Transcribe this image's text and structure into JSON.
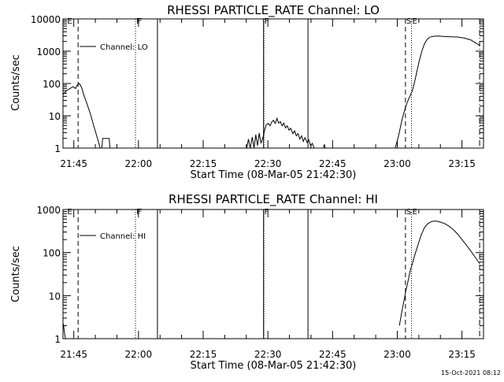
{
  "timestamp": "15-Oct-2021 08:12",
  "chart_data": [
    {
      "type": "line",
      "title": "RHESSI PARTICLE_RATE Channel: LO",
      "xlabel": "Start Time (08-Mar-05 21:42:30)",
      "ylabel": "Counts/sec",
      "scale_y": "log",
      "grid": false,
      "legend_position": "top-left",
      "xlim_minutes": [
        0,
        97.5
      ],
      "ylim": [
        1,
        10000
      ],
      "x_ticks": [
        {
          "label": "21:45",
          "min": 2.5
        },
        {
          "label": "22:00",
          "min": 17.5
        },
        {
          "label": "22:15",
          "min": 32.5
        },
        {
          "label": "22:30",
          "min": 47.5
        },
        {
          "label": "22:45",
          "min": 62.5
        },
        {
          "label": "23:00",
          "min": 77.5
        },
        {
          "label": "23:15",
          "min": 92.5
        }
      ],
      "y_ticks": [
        {
          "label": "1",
          "value": 1
        },
        {
          "label": "10",
          "value": 10
        },
        {
          "label": "100",
          "value": 100
        },
        {
          "label": "1000",
          "value": 1000
        },
        {
          "label": "10000",
          "value": 10000
        }
      ],
      "markers": [
        {
          "label": "E",
          "min": 0.8,
          "style": "none",
          "label_only": true
        },
        {
          "label": "",
          "min": 3.5,
          "style": "dashed"
        },
        {
          "label": "F",
          "min": 16.8,
          "style": "dotted"
        },
        {
          "label": "F",
          "min": 17.1,
          "style": "solid",
          "label_only": true
        },
        {
          "label": "",
          "min": 21.9,
          "style": "solid"
        },
        {
          "label": "F",
          "min": 46.5,
          "style": "solid"
        },
        {
          "label": "",
          "min": 46.6,
          "style": "dotted"
        },
        {
          "label": "",
          "min": 56.8,
          "style": "solid"
        },
        {
          "label": "S",
          "min": 79.4,
          "style": "dashed"
        },
        {
          "label": "E",
          "min": 80.8,
          "style": "dotted"
        },
        {
          "label": "",
          "min": 96.6,
          "style": "dashdot"
        }
      ],
      "series": [
        {
          "name": "Channel: LO",
          "segments": [
            [
              [
                0,
                45
              ],
              [
                0.8,
                60
              ],
              [
                1.6,
                70
              ],
              [
                2.4,
                80
              ],
              [
                2.9,
                70
              ],
              [
                3.3,
                90
              ],
              [
                3.8,
                100
              ],
              [
                4.3,
                75
              ],
              [
                4.8,
                45
              ],
              [
                5.5,
                25
              ],
              [
                6.3,
                12
              ],
              [
                7.1,
                5
              ],
              [
                7.6,
                3
              ],
              [
                8.2,
                1.6
              ],
              [
                8.6,
                1
              ]
            ],
            [
              [
                9.0,
                1
              ],
              [
                9.2,
                2
              ],
              [
                10.7,
                2
              ],
              [
                10.9,
                1
              ]
            ],
            [
              [
                42.6,
                1
              ],
              [
                43.0,
                1.9
              ],
              [
                43.4,
                1
              ],
              [
                43.9,
                2.2
              ],
              [
                44.3,
                1
              ],
              [
                44.7,
                2.6
              ],
              [
                45.1,
                1.2
              ],
              [
                45.5,
                2.9
              ],
              [
                45.9,
                1.4
              ],
              [
                46.4,
                2.2
              ],
              [
                46.7,
                3.4
              ],
              [
                47.1,
                5.2
              ],
              [
                47.6,
                5.8
              ],
              [
                48.0,
                4.9
              ],
              [
                48.4,
                6.4
              ],
              [
                48.8,
                7.2
              ],
              [
                49.2,
                5.8
              ],
              [
                49.6,
                8.3
              ],
              [
                50.0,
                5.9
              ],
              [
                50.4,
                6.6
              ],
              [
                50.8,
                4.9
              ],
              [
                51.2,
                5.9
              ],
              [
                51.6,
                4.2
              ],
              [
                52.0,
                4.9
              ],
              [
                52.4,
                3.6
              ],
              [
                52.8,
                4.1
              ],
              [
                53.3,
                2.8
              ],
              [
                53.7,
                3.4
              ],
              [
                54.1,
                2.4
              ],
              [
                54.5,
                2.8
              ],
              [
                54.9,
                1.9
              ],
              [
                55.3,
                2.4
              ],
              [
                55.7,
                1.6
              ],
              [
                56.1,
                2.1
              ],
              [
                56.6,
                1.5
              ],
              [
                57.0,
                1.8
              ],
              [
                57.4,
                1.2
              ],
              [
                57.8,
                1.4
              ],
              [
                58.2,
                1
              ]
            ],
            [
              [
                60.4,
                1
              ],
              [
                60.6,
                1.3
              ],
              [
                60.8,
                1
              ]
            ],
            [
              [
                77.0,
                1
              ],
              [
                77.4,
                1.5
              ],
              [
                77.8,
                2.4
              ],
              [
                78.2,
                4.2
              ],
              [
                78.6,
                7.5
              ],
              [
                79.0,
                12
              ],
              [
                79.4,
                18
              ],
              [
                79.8,
                26
              ],
              [
                80.2,
                34
              ],
              [
                80.6,
                45
              ],
              [
                81.0,
                60
              ],
              [
                81.5,
                110
              ],
              [
                82.0,
                220
              ],
              [
                82.6,
                500
              ],
              [
                83.2,
                1000
              ],
              [
                83.8,
                1700
              ],
              [
                84.4,
                2300
              ],
              [
                85.0,
                2700
              ],
              [
                86.0,
                2900
              ],
              [
                87.0,
                2950
              ],
              [
                88.5,
                2850
              ],
              [
                90.0,
                2800
              ],
              [
                91.5,
                2750
              ],
              [
                93.0,
                2550
              ],
              [
                94.5,
                2250
              ],
              [
                96.0,
                1700
              ],
              [
                96.6,
                1500
              ]
            ]
          ]
        }
      ]
    },
    {
      "type": "line",
      "title": "RHESSI PARTICLE_RATE Channel: HI",
      "xlabel": "Start Time (08-Mar-05 21:42:30)",
      "ylabel": "Counts/sec",
      "scale_y": "log",
      "grid": false,
      "legend_position": "top-left",
      "xlim_minutes": [
        0,
        97.5
      ],
      "ylim": [
        1,
        1000
      ],
      "x_ticks": [
        {
          "label": "21:45",
          "min": 2.5
        },
        {
          "label": "22:00",
          "min": 17.5
        },
        {
          "label": "22:15",
          "min": 32.5
        },
        {
          "label": "22:30",
          "min": 47.5
        },
        {
          "label": "22:45",
          "min": 62.5
        },
        {
          "label": "23:00",
          "min": 77.5
        },
        {
          "label": "23:15",
          "min": 92.5
        }
      ],
      "y_ticks": [
        {
          "label": "1",
          "value": 1
        },
        {
          "label": "10",
          "value": 10
        },
        {
          "label": "100",
          "value": 100
        },
        {
          "label": "1000",
          "value": 1000
        }
      ],
      "markers": [
        {
          "label": "E",
          "min": 0.8,
          "style": "none",
          "label_only": true
        },
        {
          "label": "",
          "min": 3.5,
          "style": "dashed"
        },
        {
          "label": "F",
          "min": 16.8,
          "style": "dotted"
        },
        {
          "label": "F",
          "min": 17.1,
          "style": "solid",
          "label_only": true
        },
        {
          "label": "",
          "min": 21.9,
          "style": "solid"
        },
        {
          "label": "F",
          "min": 46.5,
          "style": "solid"
        },
        {
          "label": "",
          "min": 46.6,
          "style": "dotted"
        },
        {
          "label": "",
          "min": 56.8,
          "style": "solid"
        },
        {
          "label": "S",
          "min": 79.4,
          "style": "dashed"
        },
        {
          "label": "E",
          "min": 80.8,
          "style": "dotted"
        },
        {
          "label": "",
          "min": 96.6,
          "style": "dashdot"
        }
      ],
      "series": [
        {
          "name": "Channel: HI",
          "segments": [
            [
              [
                0.1,
                2.2
              ],
              [
                0.3,
                1.5
              ],
              [
                0.5,
                1.1
              ],
              [
                0.6,
                1
              ]
            ],
            [
              [
                78.0,
                2
              ],
              [
                78.3,
                3
              ],
              [
                78.7,
                5
              ],
              [
                79.1,
                8
              ],
              [
                79.5,
                13
              ],
              [
                80.0,
                22
              ],
              [
                80.5,
                38
              ],
              [
                81.0,
                55
              ],
              [
                81.6,
                90
              ],
              [
                82.3,
                150
              ],
              [
                83.0,
                250
              ],
              [
                83.8,
                380
              ],
              [
                84.6,
                470
              ],
              [
                85.5,
                530
              ],
              [
                86.5,
                540
              ],
              [
                87.5,
                510
              ],
              [
                88.5,
                470
              ],
              [
                89.5,
                410
              ],
              [
                90.5,
                340
              ],
              [
                91.5,
                270
              ],
              [
                92.5,
                200
              ],
              [
                93.5,
                150
              ],
              [
                94.5,
                110
              ],
              [
                95.5,
                80
              ],
              [
                96.6,
                55
              ]
            ]
          ]
        }
      ]
    }
  ]
}
